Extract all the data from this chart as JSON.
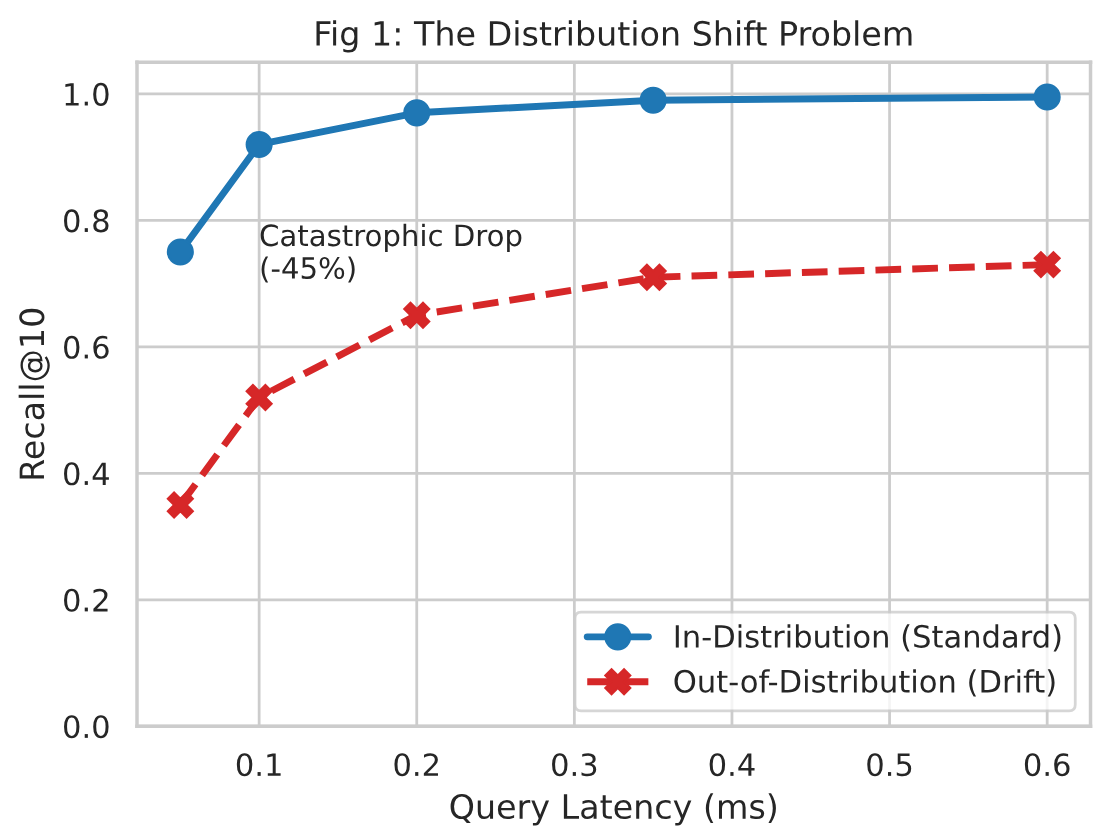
{
  "chart_data": {
    "type": "line",
    "title": "Fig 1: The Distribution Shift Problem",
    "xlabel": "Query Latency (ms)",
    "ylabel": "Recall@10",
    "x": [
      0.05,
      0.1,
      0.2,
      0.35,
      0.6
    ],
    "series": [
      {
        "name": "In-Distribution (Standard)",
        "color": "#1f77b4",
        "values": [
          0.75,
          0.92,
          0.97,
          0.99,
          0.995
        ],
        "marker": "circle",
        "line_style": "solid"
      },
      {
        "name": "Out-of-Distribution (Drift)",
        "color": "#d62728",
        "values": [
          0.35,
          0.52,
          0.65,
          0.71,
          0.73
        ],
        "marker": "cross",
        "line_style": "dashed"
      }
    ],
    "xlim": [
      0.0225,
      0.6275
    ],
    "xticks": [
      0.1,
      0.2,
      0.3,
      0.4,
      0.5,
      0.6
    ],
    "ylim": [
      0,
      1.05
    ],
    "yticks": [
      {
        "value": 0,
        "label": "0.0"
      },
      0.2,
      0.4,
      0.6,
      0.8,
      {
        "value": 1,
        "label": "1.0"
      }
    ],
    "grid": true,
    "legend": "bottom right",
    "annotations": [
      "Catastrophic Drop\n(-45%)"
    ]
  }
}
